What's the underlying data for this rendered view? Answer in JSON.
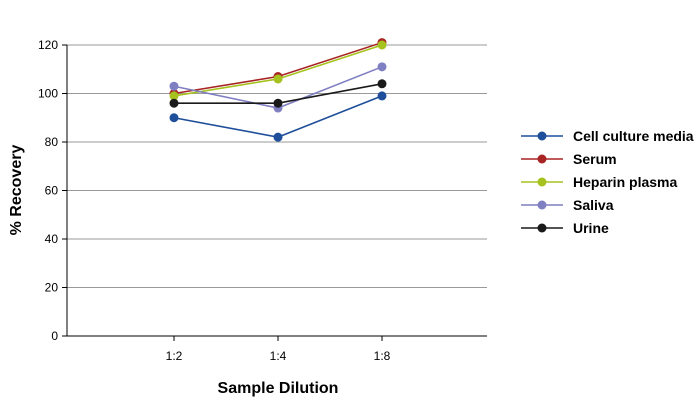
{
  "chart_data": {
    "type": "line",
    "title": "",
    "xlabel": "Sample Dilution",
    "ylabel": "% Recovery",
    "categories": [
      "1:2",
      "1:4",
      "1:8"
    ],
    "ylim": [
      0,
      120
    ],
    "yticks": [
      0,
      20,
      40,
      60,
      80,
      100,
      120
    ],
    "grid": "horizontal",
    "legend_position": "right",
    "series": [
      {
        "name": "Cell culture media",
        "color": "#1f4e9a",
        "values": [
          90,
          82,
          99
        ]
      },
      {
        "name": "Serum",
        "color": "#a82424",
        "values": [
          100,
          107,
          121
        ]
      },
      {
        "name": "Heparin plasma",
        "color": "#a6c21e",
        "values": [
          99,
          106,
          120
        ]
      },
      {
        "name": "Saliva",
        "color": "#7f7fc2",
        "values": [
          103,
          94,
          111
        ]
      },
      {
        "name": "Urine",
        "color": "#1a1a1a",
        "values": [
          96,
          96,
          104
        ]
      }
    ]
  }
}
